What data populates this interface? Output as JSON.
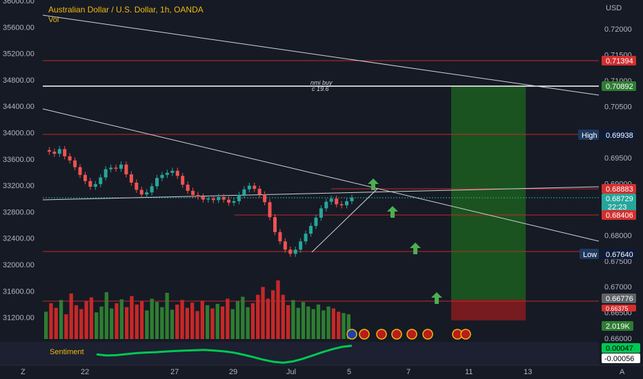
{
  "header": {
    "title": "Australian Dollar / U.S. Dollar, 1h, OANDA",
    "vol_label": "Vol",
    "currency": "USD"
  },
  "sentiment_label": "Sentiment",
  "annotation": {
    "line1": "nmi buy",
    "line2": "c 19.6"
  },
  "left_axis": {
    "ticks": [
      "36000.00",
      "35600.00",
      "35200.00",
      "34800.00",
      "34400.00",
      "34000.00",
      "33600.00",
      "33200.00",
      "32800.00",
      "32400.00",
      "32000.00",
      "31600.00",
      "31200.00"
    ]
  },
  "right_axis": {
    "ticks": [
      "0.72000",
      "0.71500",
      "0.71000",
      "0.70500",
      "0.70000",
      "0.69500",
      "0.69000",
      "0.68500",
      "0.68000",
      "0.67500",
      "0.67000",
      "0.66500",
      "0.66000"
    ]
  },
  "price_tags": {
    "red_top": "0.71394",
    "entry": "0.70892",
    "high_label": "High",
    "high": "0.69938",
    "res": "0.68883",
    "last": "0.68729",
    "countdown": "22:23",
    "support": "0.68406",
    "low_label": "Low",
    "low": "0.67640",
    "gray": "0.66776",
    "red_bottom": "0.66375",
    "vol_value": "2.019K",
    "sent_pos": "0.00047",
    "sent_neg": "-0.00056"
  },
  "x_axis": {
    "labels": [
      "22",
      "27",
      "29",
      "Jul",
      "5",
      "7",
      "11",
      "13"
    ],
    "corner_left": "Z",
    "corner_right": "A"
  },
  "colors": {
    "background": "#161a25",
    "up": "#26a69a",
    "down": "#ef5350",
    "vol_up": "#2e7d32",
    "vol_down": "#c62828",
    "hline": "#c62828",
    "profit_zone": "#1b5e20",
    "loss_zone": "#b71c1c",
    "arrow": "#4caf50",
    "sentiment_pos": "#00c853",
    "sentiment_neg": "#d50000",
    "title": "#f0b90b"
  },
  "chart_data": {
    "type": "candlestick",
    "symbol": "AUDUSD",
    "timeframe": "1h",
    "ylim": [
      0.6585,
      0.7225
    ],
    "x_labels": [
      "22",
      "27",
      "29",
      "Jul",
      "5",
      "7",
      "11",
      "13"
    ],
    "levels": [
      0.71394,
      0.70892,
      0.69938,
      0.68883,
      0.68406,
      0.6764,
      0.66776
    ],
    "last_price": 0.68729,
    "recent_high": 0.69938,
    "recent_low": 0.6764,
    "price_path": [
      0.6965,
      0.6962,
      0.6958,
      0.6967,
      0.6953,
      0.6945,
      0.6932,
      0.6917,
      0.6905,
      0.6894,
      0.6899,
      0.6912,
      0.6928,
      0.6931,
      0.6929,
      0.6937,
      0.6918,
      0.6902,
      0.6888,
      0.6879,
      0.6883,
      0.6895,
      0.6911,
      0.6917,
      0.6921,
      0.6925,
      0.6915,
      0.6898,
      0.6886,
      0.6878,
      0.6875,
      0.6869,
      0.6871,
      0.6868,
      0.6874,
      0.6869,
      0.6863,
      0.6866,
      0.6878,
      0.6889,
      0.6896,
      0.689,
      0.6879,
      0.6864,
      0.6835,
      0.6806,
      0.6788,
      0.6772,
      0.6764,
      0.6772,
      0.6788,
      0.6803,
      0.6818,
      0.6834,
      0.6852,
      0.6865,
      0.6871,
      0.686,
      0.6858,
      0.6866,
      0.6873
    ],
    "volume_path": [
      42,
      55,
      48,
      60,
      38,
      70,
      52,
      46,
      58,
      64,
      41,
      50,
      72,
      47,
      55,
      61,
      49,
      66,
      53,
      58,
      44,
      62,
      57,
      49,
      71,
      45,
      53,
      60,
      48,
      56,
      43,
      59,
      52,
      47,
      54,
      50,
      62,
      46,
      58,
      65,
      49,
      55,
      68,
      80,
      62,
      75,
      90,
      68,
      52,
      60,
      48,
      57,
      50,
      46,
      53,
      44,
      50,
      47,
      42,
      40,
      38
    ],
    "sentiment_path": [
      -5e-05,
      -0.00012,
      -0.0001,
      -4e-05,
      2e-05,
      6e-05,
      8e-05,
      0.00012,
      0.00015,
      0.00018,
      0.0002,
      0.00022,
      0.00018,
      0.00013,
      5e-05,
      -8e-05,
      -0.00022,
      -0.00038,
      -0.0005,
      -0.00056,
      -0.00048,
      -0.00032,
      -0.00012,
      8e-05,
      0.00026,
      0.0004,
      0.00047
    ]
  }
}
